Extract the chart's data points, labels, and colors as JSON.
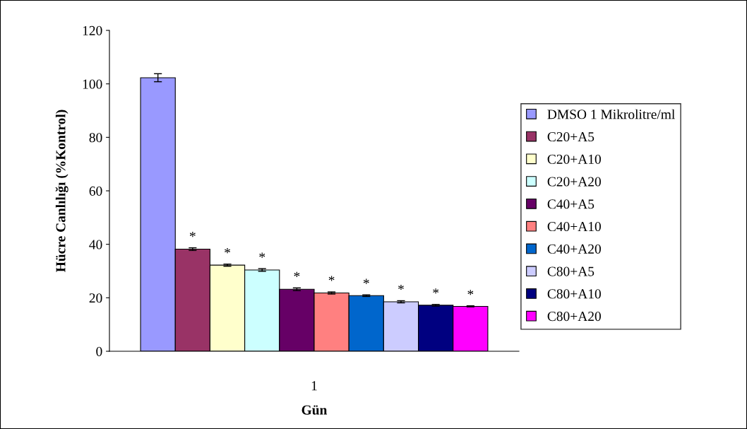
{
  "chart_data": {
    "type": "bar",
    "xlabel": "Gün",
    "ylabel": "Hücre Canlılığı (%Kontrol)",
    "categories": [
      "1"
    ],
    "ylim": [
      0,
      120
    ],
    "yticks": [
      0,
      20,
      40,
      60,
      80,
      100,
      120
    ],
    "grid": false,
    "legend": "right",
    "series": [
      {
        "name": "DMSO 1 Mikrolitre/ml",
        "color": "#9999ff",
        "values": [
          102.3
        ],
        "errors": [
          1.5
        ]
      },
      {
        "name": "C20+A5",
        "color": "#993366",
        "values": [
          38.2
        ],
        "errors": [
          0.5
        ],
        "value_labels": [
          "*"
        ]
      },
      {
        "name": "C20+A10",
        "color": "#ffffcc",
        "values": [
          32.2
        ],
        "errors": [
          0.4
        ],
        "value_labels": [
          "*"
        ]
      },
      {
        "name": "C20+A20",
        "color": "#ccffff",
        "values": [
          30.4
        ],
        "errors": [
          0.5
        ],
        "value_labels": [
          "*"
        ]
      },
      {
        "name": "C40+A5",
        "color": "#660066",
        "values": [
          23.2
        ],
        "errors": [
          0.5
        ],
        "value_labels": [
          "*"
        ]
      },
      {
        "name": "C40+A10",
        "color": "#ff8080",
        "values": [
          21.8
        ],
        "errors": [
          0.4
        ],
        "value_labels": [
          "*"
        ]
      },
      {
        "name": "C40+A20",
        "color": "#0066cc",
        "values": [
          20.8
        ],
        "errors": [
          0.3
        ],
        "value_labels": [
          "*"
        ]
      },
      {
        "name": "C80+A5",
        "color": "#ccccff",
        "values": [
          18.5
        ],
        "errors": [
          0.4
        ],
        "value_labels": [
          "*"
        ]
      },
      {
        "name": "C80+A10",
        "color": "#000080",
        "values": [
          17.2
        ],
        "errors": [
          0.3
        ],
        "value_labels": [
          "*"
        ]
      },
      {
        "name": "C80+A20",
        "color": "#ff00ff",
        "values": [
          16.8
        ],
        "errors": [
          0.2
        ],
        "value_labels": [
          "*"
        ]
      }
    ]
  }
}
